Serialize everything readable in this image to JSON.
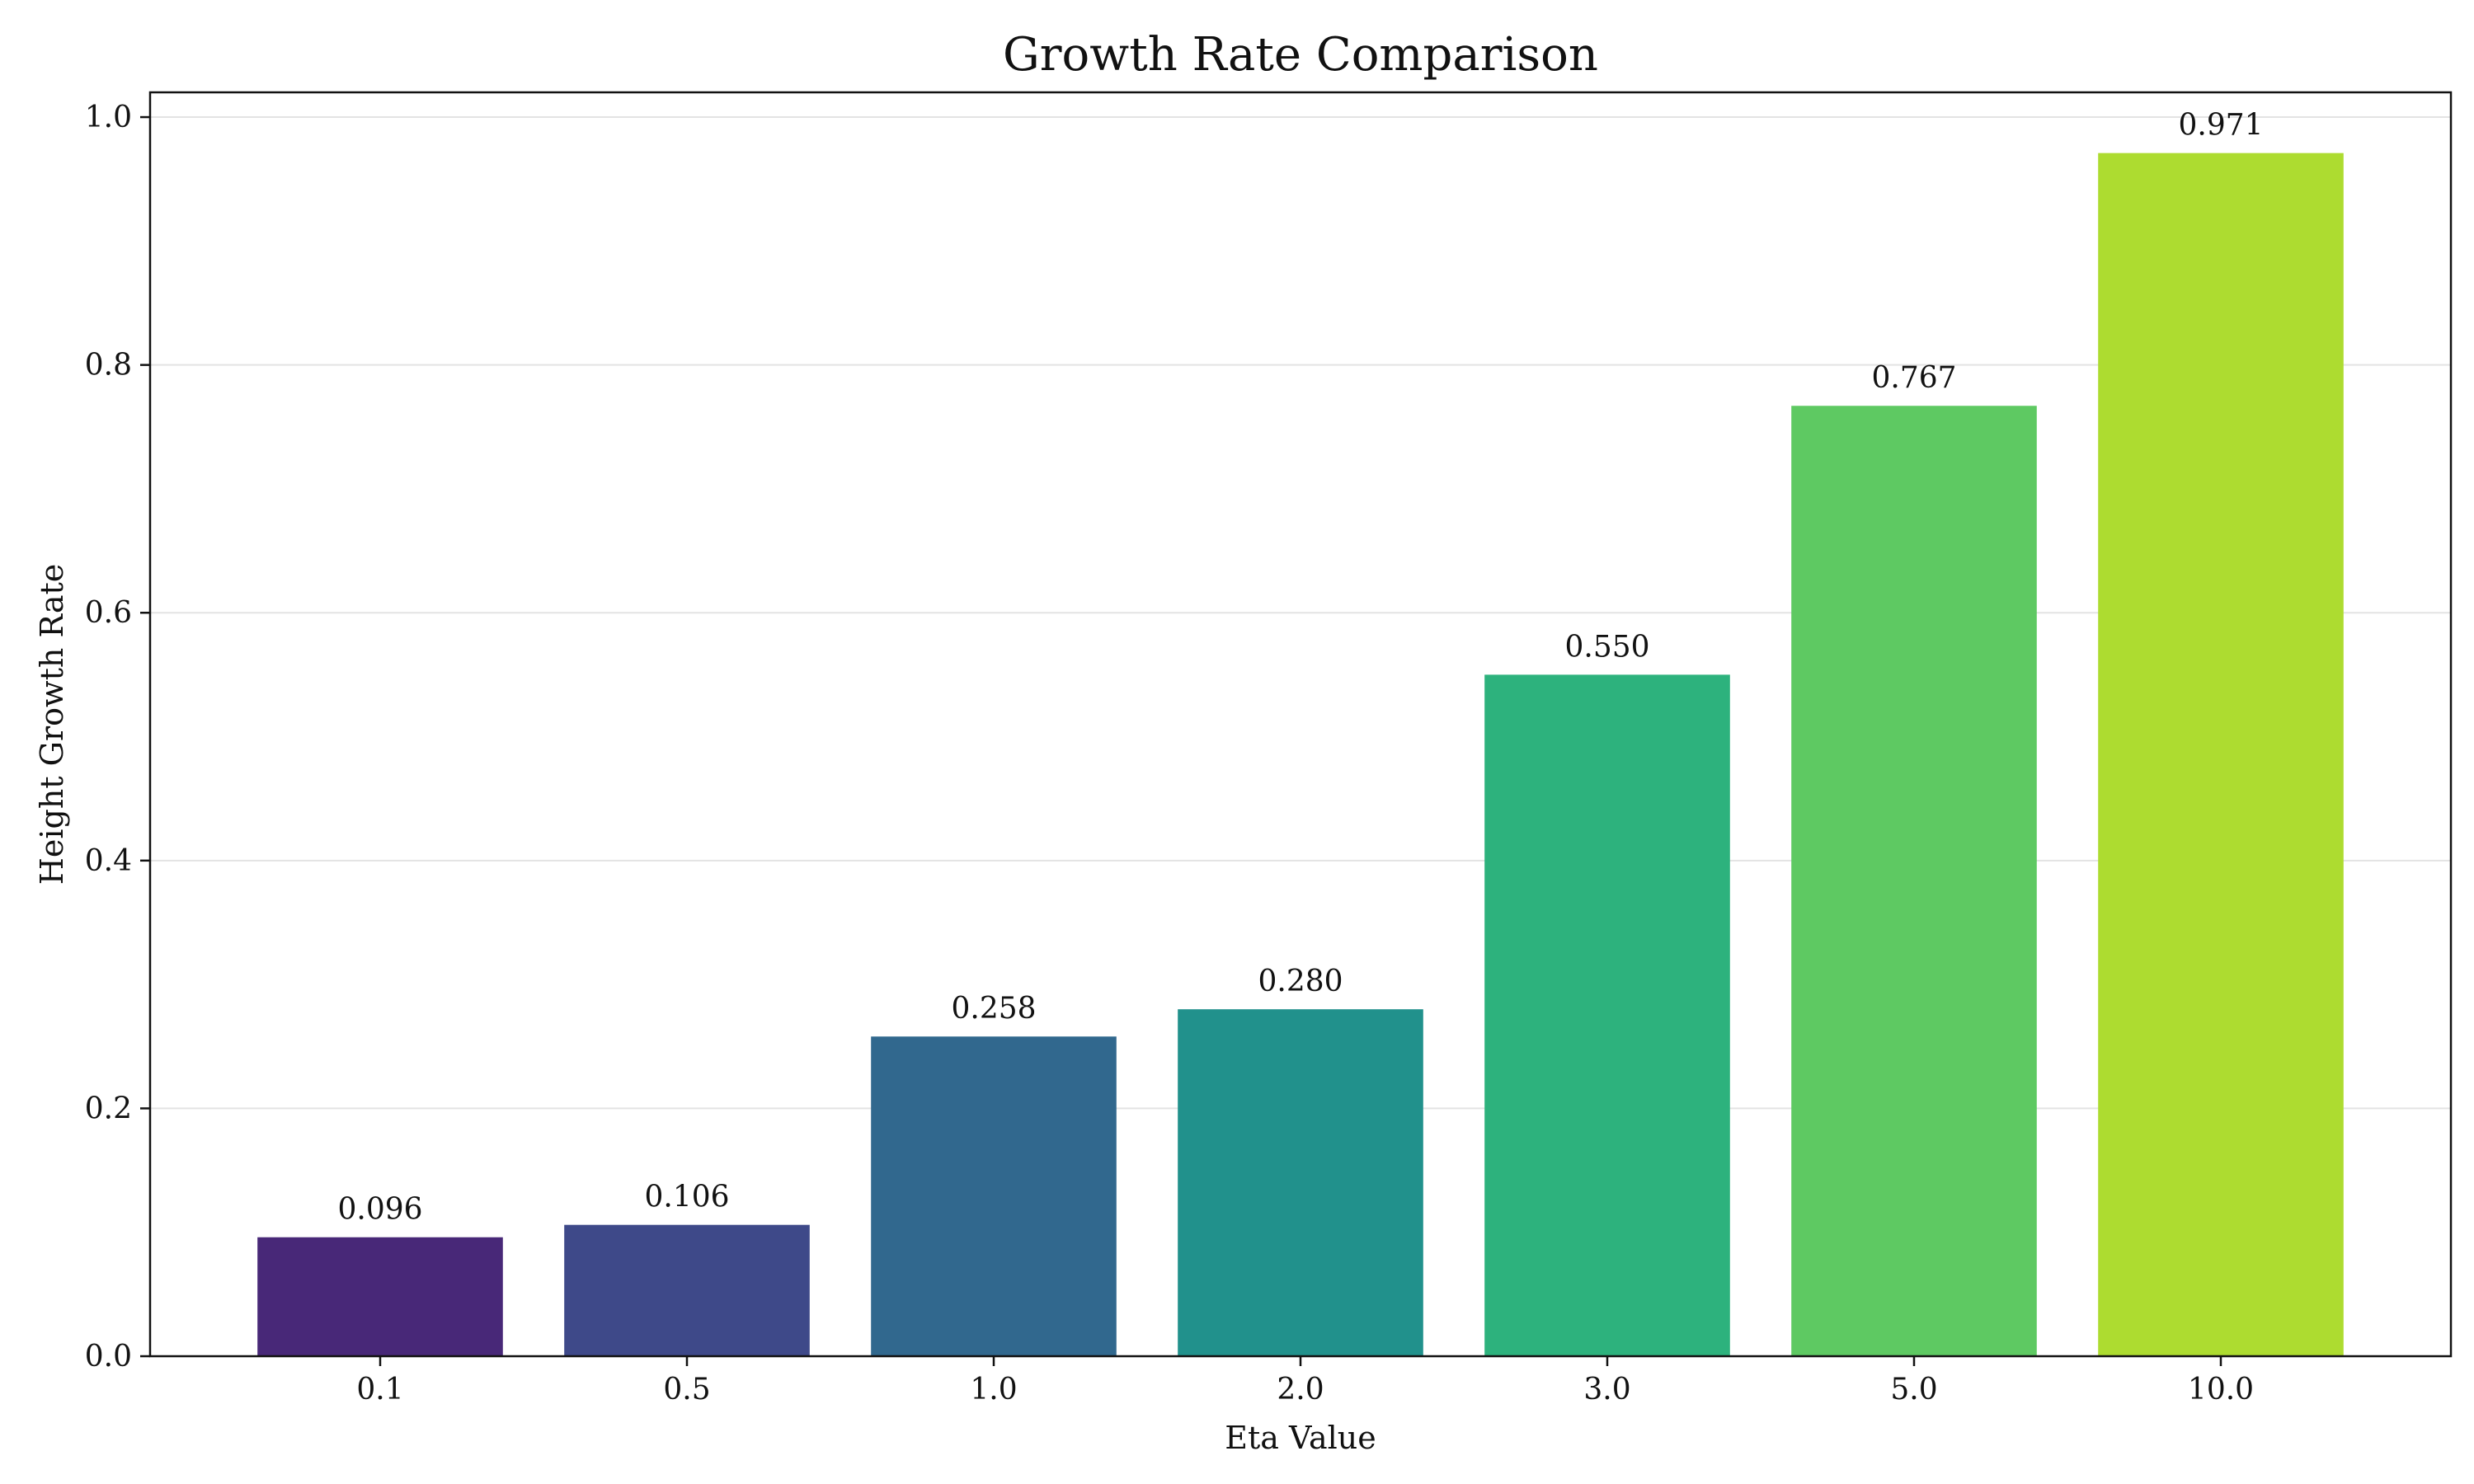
{
  "chart_data": {
    "type": "bar",
    "title": "Growth Rate Comparison",
    "xlabel": "Eta Value",
    "ylabel": "Height Growth Rate",
    "categories": [
      "0.1",
      "0.5",
      "1.0",
      "2.0",
      "3.0",
      "5.0",
      "10.0"
    ],
    "values": [
      0.096,
      0.106,
      0.258,
      0.28,
      0.55,
      0.767,
      0.971
    ],
    "data_labels": [
      "0.096",
      "0.106",
      "0.258",
      "0.280",
      "0.550",
      "0.767",
      "0.971"
    ],
    "colors": [
      "#482878",
      "#3e4989",
      "#31688e",
      "#21918c",
      "#2db27d",
      "#5ec962",
      "#addc30"
    ],
    "ylim": [
      0,
      1.02
    ],
    "yticks": [
      0.0,
      0.2,
      0.4,
      0.6,
      0.8,
      1.0
    ],
    "ytick_labels": [
      "0.0",
      "0.2",
      "0.4",
      "0.6",
      "0.8",
      "1.0"
    ],
    "grid": "horizontal",
    "legend": "none"
  }
}
